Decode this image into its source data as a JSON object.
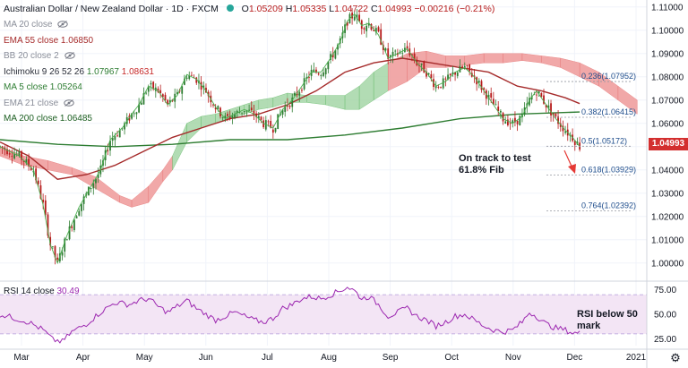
{
  "header": {
    "symbol": "Australian Dollar / New Zealand Dollar · 1D · FXCM",
    "ohlc": {
      "o_label": "O",
      "o": "1.05209",
      "h_label": "H",
      "h": "1.05335",
      "l_label": "L",
      "l": "1.04722",
      "c_label": "C",
      "c": "1.04993",
      "change": "−0.00216 (−0.21%)"
    },
    "status_color": "#26a69a"
  },
  "indicators": [
    {
      "label": "MA 20 close",
      "value": "",
      "value2": "",
      "hidden": true,
      "color": "#8a8e99",
      "icon": "eye-off-icon"
    },
    {
      "label": "EMA 55 close",
      "value": "1.06850",
      "value2": "",
      "hidden": false,
      "color": "#a52a2a"
    },
    {
      "label": "BB 20 close 2",
      "value": "",
      "value2": "",
      "hidden": true,
      "color": "#8a8e99",
      "icon": "eye-off-icon"
    },
    {
      "label": "Ichimoku 9 26 52 26",
      "value": "1.07967",
      "value2": "1.08631",
      "hidden": false,
      "color": "#2a2e39",
      "value_color": "#2e7d32",
      "value2_color": "#c62828"
    },
    {
      "label": "MA 5 close",
      "value": "1.05264",
      "value2": "",
      "hidden": false,
      "color": "#2e7d32"
    },
    {
      "label": "EMA 21 close",
      "value": "",
      "value2": "",
      "hidden": true,
      "color": "#8a8e99",
      "icon": "eye-off-icon"
    },
    {
      "label": "MA 200 close",
      "value": "1.06485",
      "value2": "",
      "hidden": false,
      "color": "#1b5e20"
    }
  ],
  "colors": {
    "up": "#2e7d32",
    "down": "#b71c1c",
    "ema55": "#a52a2a",
    "ma200": "#2e7d32",
    "ma5": "#4caf50",
    "cloud_bull": "#a5d6a7",
    "cloud_bear": "#ef9a9a",
    "price_badge": "#d32f2f",
    "rsi_line": "#9c27b0",
    "rsi_band": "#f3e5f5",
    "arrow": "#e53935"
  },
  "chart_data": [
    {
      "type": "candlestick",
      "title": "Australian Dollar / New Zealand Dollar · 1D · FXCM",
      "x_ticks": [
        "Mar",
        "Apr",
        "May",
        "Jun",
        "Jul",
        "Aug",
        "Sep",
        "Oct",
        "Nov",
        "Dec",
        "2021"
      ],
      "y_ticks": [
        "1.11000",
        "1.10000",
        "1.09000",
        "1.08000",
        "1.07000",
        "1.06000",
        "1.05000",
        "1.04000",
        "1.03000",
        "1.02000",
        "1.01000",
        "1.00000"
      ],
      "ylim": [
        0.993,
        1.113
      ],
      "last_price": "1.04993",
      "price_path": [
        [
          0,
          1.05
        ],
        [
          8,
          1.046
        ],
        [
          14,
          1.04
        ],
        [
          18,
          1.025
        ],
        [
          21,
          1.008
        ],
        [
          24,
          1.0
        ],
        [
          28,
          1.012
        ],
        [
          33,
          1.024
        ],
        [
          38,
          1.033
        ],
        [
          42,
          1.04
        ],
        [
          46,
          1.053
        ],
        [
          51,
          1.058
        ],
        [
          55,
          1.064
        ],
        [
          58,
          1.068
        ],
        [
          62,
          1.076
        ],
        [
          66,
          1.074
        ],
        [
          70,
          1.068
        ],
        [
          74,
          1.072
        ],
        [
          78,
          1.081
        ],
        [
          82,
          1.079
        ],
        [
          86,
          1.074
        ],
        [
          90,
          1.067
        ],
        [
          94,
          1.062
        ],
        [
          98,
          1.064
        ],
        [
          102,
          1.066
        ],
        [
          106,
          1.064
        ],
        [
          110,
          1.06
        ],
        [
          114,
          1.058
        ],
        [
          118,
          1.066
        ],
        [
          122,
          1.07
        ],
        [
          126,
          1.076
        ],
        [
          130,
          1.082
        ],
        [
          134,
          1.082
        ],
        [
          138,
          1.088
        ],
        [
          142,
          1.095
        ],
        [
          145,
          1.104
        ],
        [
          148,
          1.107
        ],
        [
          151,
          1.102
        ],
        [
          154,
          1.103
        ],
        [
          158,
          1.098
        ],
        [
          162,
          1.088
        ],
        [
          166,
          1.09
        ],
        [
          170,
          1.092
        ],
        [
          174,
          1.086
        ],
        [
          178,
          1.082
        ],
        [
          182,
          1.076
        ],
        [
          186,
          1.078
        ],
        [
          190,
          1.082
        ],
        [
          194,
          1.084
        ],
        [
          198,
          1.08
        ],
        [
          202,
          1.074
        ],
        [
          206,
          1.068
        ],
        [
          210,
          1.062
        ],
        [
          214,
          1.06
        ],
        [
          218,
          1.063
        ],
        [
          221,
          1.07
        ],
        [
          224,
          1.074
        ],
        [
          228,
          1.068
        ],
        [
          232,
          1.062
        ],
        [
          236,
          1.057
        ],
        [
          239,
          1.054
        ],
        [
          242,
          1.05
        ]
      ],
      "ichimoku_cloud": [
        [
          0,
          1.046,
          1.05
        ],
        [
          10,
          1.042,
          1.046
        ],
        [
          20,
          1.04,
          1.044
        ],
        [
          30,
          1.038,
          1.041
        ],
        [
          40,
          1.032,
          1.037
        ],
        [
          50,
          1.026,
          1.029
        ],
        [
          55,
          1.024,
          1.027
        ],
        [
          62,
          1.026,
          1.033
        ],
        [
          68,
          1.035,
          1.04
        ],
        [
          72,
          1.04,
          1.046
        ],
        [
          78,
          1.052,
          1.06
        ],
        [
          84,
          1.058,
          1.063
        ],
        [
          90,
          1.06,
          1.064
        ],
        [
          96,
          1.062,
          1.066
        ],
        [
          102,
          1.064,
          1.068
        ],
        [
          108,
          1.066,
          1.07
        ],
        [
          114,
          1.067,
          1.071
        ],
        [
          120,
          1.069,
          1.073
        ],
        [
          128,
          1.069,
          1.072
        ],
        [
          136,
          1.068,
          1.072
        ],
        [
          144,
          1.066,
          1.072
        ],
        [
          150,
          1.066,
          1.076
        ],
        [
          156,
          1.07,
          1.082
        ],
        [
          162,
          1.074,
          1.086
        ],
        [
          170,
          1.078,
          1.09
        ],
        [
          178,
          1.084,
          1.091
        ],
        [
          186,
          1.084,
          1.089
        ],
        [
          194,
          1.085,
          1.089
        ],
        [
          202,
          1.086,
          1.09
        ],
        [
          210,
          1.086,
          1.09
        ],
        [
          218,
          1.087,
          1.09
        ],
        [
          226,
          1.086,
          1.089
        ],
        [
          234,
          1.084,
          1.088
        ],
        [
          242,
          1.08,
          1.086
        ],
        [
          250,
          1.076,
          1.082
        ],
        [
          258,
          1.07,
          1.076
        ],
        [
          266,
          1.064,
          1.07
        ]
      ],
      "ema55_path": [
        [
          0,
          1.052
        ],
        [
          12,
          1.046
        ],
        [
          24,
          1.036
        ],
        [
          36,
          1.038
        ],
        [
          48,
          1.042
        ],
        [
          60,
          1.048
        ],
        [
          72,
          1.054
        ],
        [
          84,
          1.058
        ],
        [
          96,
          1.062
        ],
        [
          108,
          1.064
        ],
        [
          120,
          1.068
        ],
        [
          132,
          1.074
        ],
        [
          144,
          1.082
        ],
        [
          156,
          1.086
        ],
        [
          168,
          1.088
        ],
        [
          180,
          1.086
        ],
        [
          192,
          1.084
        ],
        [
          204,
          1.082
        ],
        [
          216,
          1.076
        ],
        [
          226,
          1.074
        ],
        [
          236,
          1.071
        ],
        [
          242,
          1.0685
        ]
      ],
      "ma200_path": [
        [
          0,
          1.053
        ],
        [
          24,
          1.051
        ],
        [
          48,
          1.05
        ],
        [
          72,
          1.051
        ],
        [
          96,
          1.053
        ],
        [
          120,
          1.053
        ],
        [
          144,
          1.055
        ],
        [
          168,
          1.058
        ],
        [
          192,
          1.062
        ],
        [
          216,
          1.064
        ],
        [
          242,
          1.0649
        ]
      ],
      "fibonacci": [
        {
          "label": "0.236(1.07952)",
          "value": 1.07952
        },
        {
          "label": "0.382(1.06415)",
          "value": 1.06415
        },
        {
          "label": "0.5(1.05172)",
          "value": 1.05172
        },
        {
          "label": "0.618(1.03929)",
          "value": 1.03929
        },
        {
          "label": "0.764(1.02392)",
          "value": 1.02392
        }
      ],
      "annotation": {
        "line1": "On track to test",
        "line2": "61.8% Fib"
      }
    },
    {
      "type": "line",
      "title": "RSI 14 close",
      "last_value": "30.49",
      "y_ticks": [
        "75.00",
        "50.00",
        "25.00"
      ],
      "ylim": [
        18,
        82
      ],
      "band": [
        30,
        70
      ],
      "values": [
        [
          0,
          50
        ],
        [
          6,
          46
        ],
        [
          12,
          42
        ],
        [
          18,
          34
        ],
        [
          22,
          24
        ],
        [
          26,
          22
        ],
        [
          30,
          32
        ],
        [
          36,
          40
        ],
        [
          42,
          52
        ],
        [
          48,
          62
        ],
        [
          54,
          60
        ],
        [
          58,
          64
        ],
        [
          62,
          66
        ],
        [
          66,
          58
        ],
        [
          70,
          52
        ],
        [
          74,
          58
        ],
        [
          78,
          64
        ],
        [
          82,
          56
        ],
        [
          86,
          50
        ],
        [
          90,
          44
        ],
        [
          94,
          48
        ],
        [
          98,
          52
        ],
        [
          102,
          48
        ],
        [
          106,
          44
        ],
        [
          110,
          42
        ],
        [
          114,
          46
        ],
        [
          118,
          56
        ],
        [
          122,
          60
        ],
        [
          126,
          66
        ],
        [
          130,
          68
        ],
        [
          134,
          66
        ],
        [
          138,
          70
        ],
        [
          142,
          74
        ],
        [
          145,
          78
        ],
        [
          148,
          74
        ],
        [
          151,
          66
        ],
        [
          154,
          68
        ],
        [
          158,
          60
        ],
        [
          162,
          48
        ],
        [
          166,
          52
        ],
        [
          170,
          56
        ],
        [
          174,
          48
        ],
        [
          178,
          44
        ],
        [
          182,
          38
        ],
        [
          186,
          42
        ],
        [
          190,
          48
        ],
        [
          194,
          50
        ],
        [
          198,
          44
        ],
        [
          202,
          38
        ],
        [
          206,
          34
        ],
        [
          210,
          32
        ],
        [
          214,
          34
        ],
        [
          218,
          42
        ],
        [
          221,
          52
        ],
        [
          224,
          48
        ],
        [
          228,
          40
        ],
        [
          232,
          36
        ],
        [
          236,
          34
        ],
        [
          239,
          31
        ],
        [
          242,
          30.5
        ]
      ],
      "annotation": {
        "line1": "RSI below 50",
        "line2": "mark"
      }
    }
  ]
}
